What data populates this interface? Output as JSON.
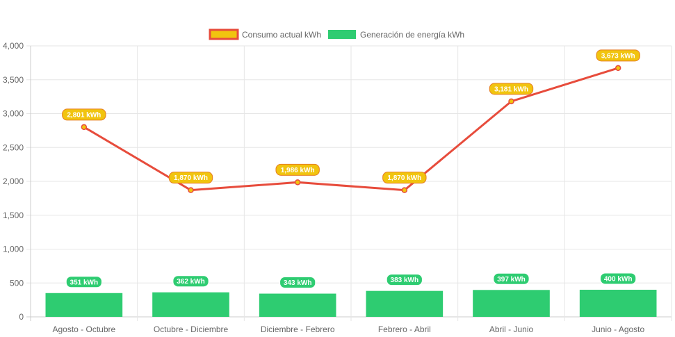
{
  "chart_data": {
    "type": "bar",
    "categories": [
      "Agosto - Octubre",
      "Octubre - Diciembre",
      "Diciembre - Febrero",
      "Febrero - Abril",
      "Abril - Junio",
      "Junio - Agosto"
    ],
    "series": [
      {
        "name": "Consumo actual kWh",
        "type": "line",
        "values": [
          2801,
          1870,
          1986,
          1870,
          3181,
          3673
        ],
        "labels": [
          "2,801 kWh",
          "1,870 kWh",
          "1,986 kWh",
          "1,870 kWh",
          "3,181 kWh",
          "3,673 kWh"
        ],
        "color": "#e74c3c",
        "label_fill": "#f1c40f",
        "label_border": "#e67e22"
      },
      {
        "name": "Generación de energía kWh",
        "type": "bar",
        "values": [
          351,
          362,
          343,
          383,
          397,
          400
        ],
        "labels": [
          "351 kWh",
          "362 kWh",
          "343 kWh",
          "383 kWh",
          "397 kWh",
          "400 kWh"
        ],
        "color": "#2ecc71",
        "label_fill": "#2ecc71",
        "label_border": "#ffffff"
      }
    ],
    "ylim": [
      0,
      4000
    ],
    "yticks": [
      0,
      500,
      1000,
      1500,
      2000,
      2500,
      3000,
      3500,
      4000
    ],
    "ytick_labels": [
      "0",
      "500",
      "1,000",
      "1,500",
      "2,000",
      "2,500",
      "3,000",
      "3,500",
      "4,000"
    ],
    "grid": true,
    "legend_position": "top-center",
    "title": "",
    "xlabel": "",
    "ylabel": ""
  }
}
